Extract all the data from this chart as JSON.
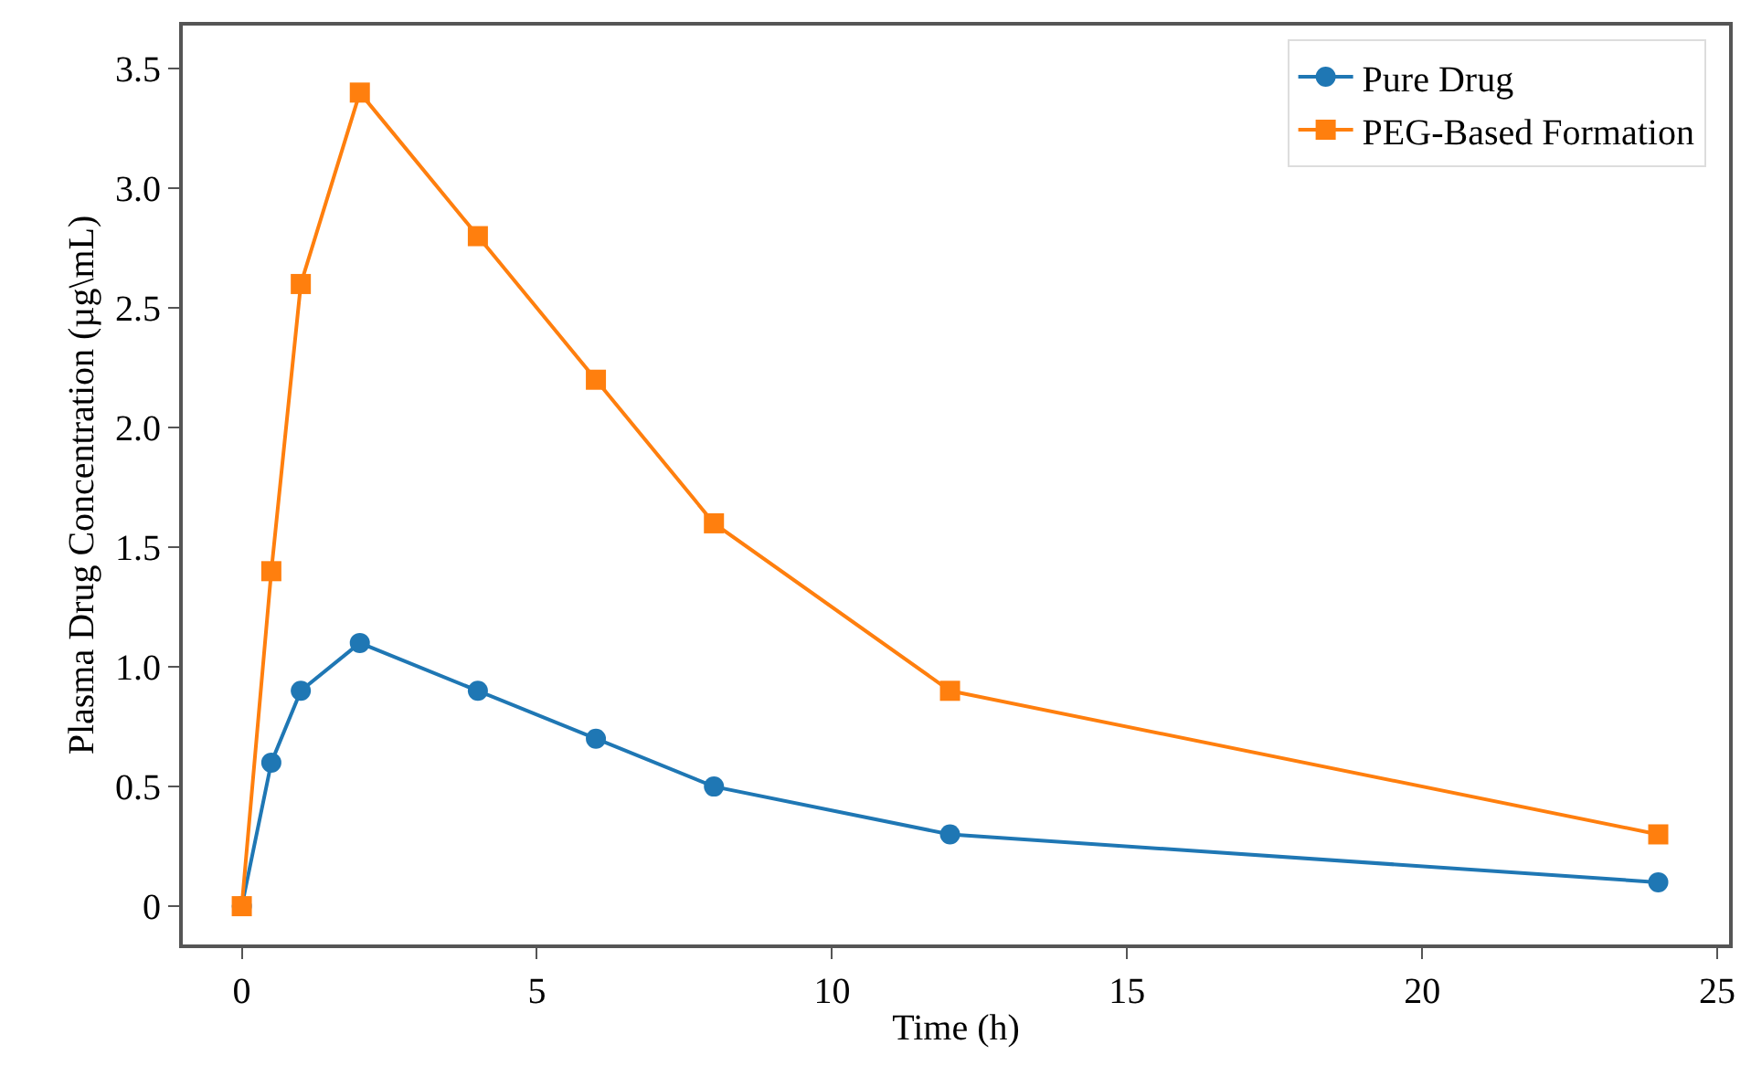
{
  "chart_data": {
    "type": "line",
    "xlabel": "Time (h)",
    "ylabel": "Plasma Drug Concentration (µg\\mL)",
    "x": [
      0,
      0.5,
      1,
      2,
      4,
      6,
      8,
      12,
      24
    ],
    "series": [
      {
        "name": "Pure Drug",
        "color": "#1f77b4",
        "marker": "circle",
        "values": [
          0,
          0.6,
          0.9,
          1.1,
          0.9,
          0.7,
          0.5,
          0.3,
          0.1
        ]
      },
      {
        "name": "PEG-Based Formation",
        "color": "#ff7f0e",
        "marker": "square",
        "values": [
          0,
          1.4,
          2.6,
          3.4,
          2.8,
          2.2,
          1.6,
          0.9,
          0.3
        ]
      }
    ],
    "xlim": [
      -1,
      25.2
    ],
    "ylim": [
      -0.16,
      3.68
    ],
    "xticks": [
      0,
      5,
      10,
      15,
      20,
      25
    ],
    "yticks": [
      0,
      0.5,
      {
        "value": 1,
        "label": "1.0"
      },
      1.5,
      {
        "value": 2,
        "label": "2.0"
      },
      2.5,
      {
        "value": 3,
        "label": "3.0"
      },
      3.5
    ],
    "legend": "top right",
    "line_style": "solid"
  }
}
